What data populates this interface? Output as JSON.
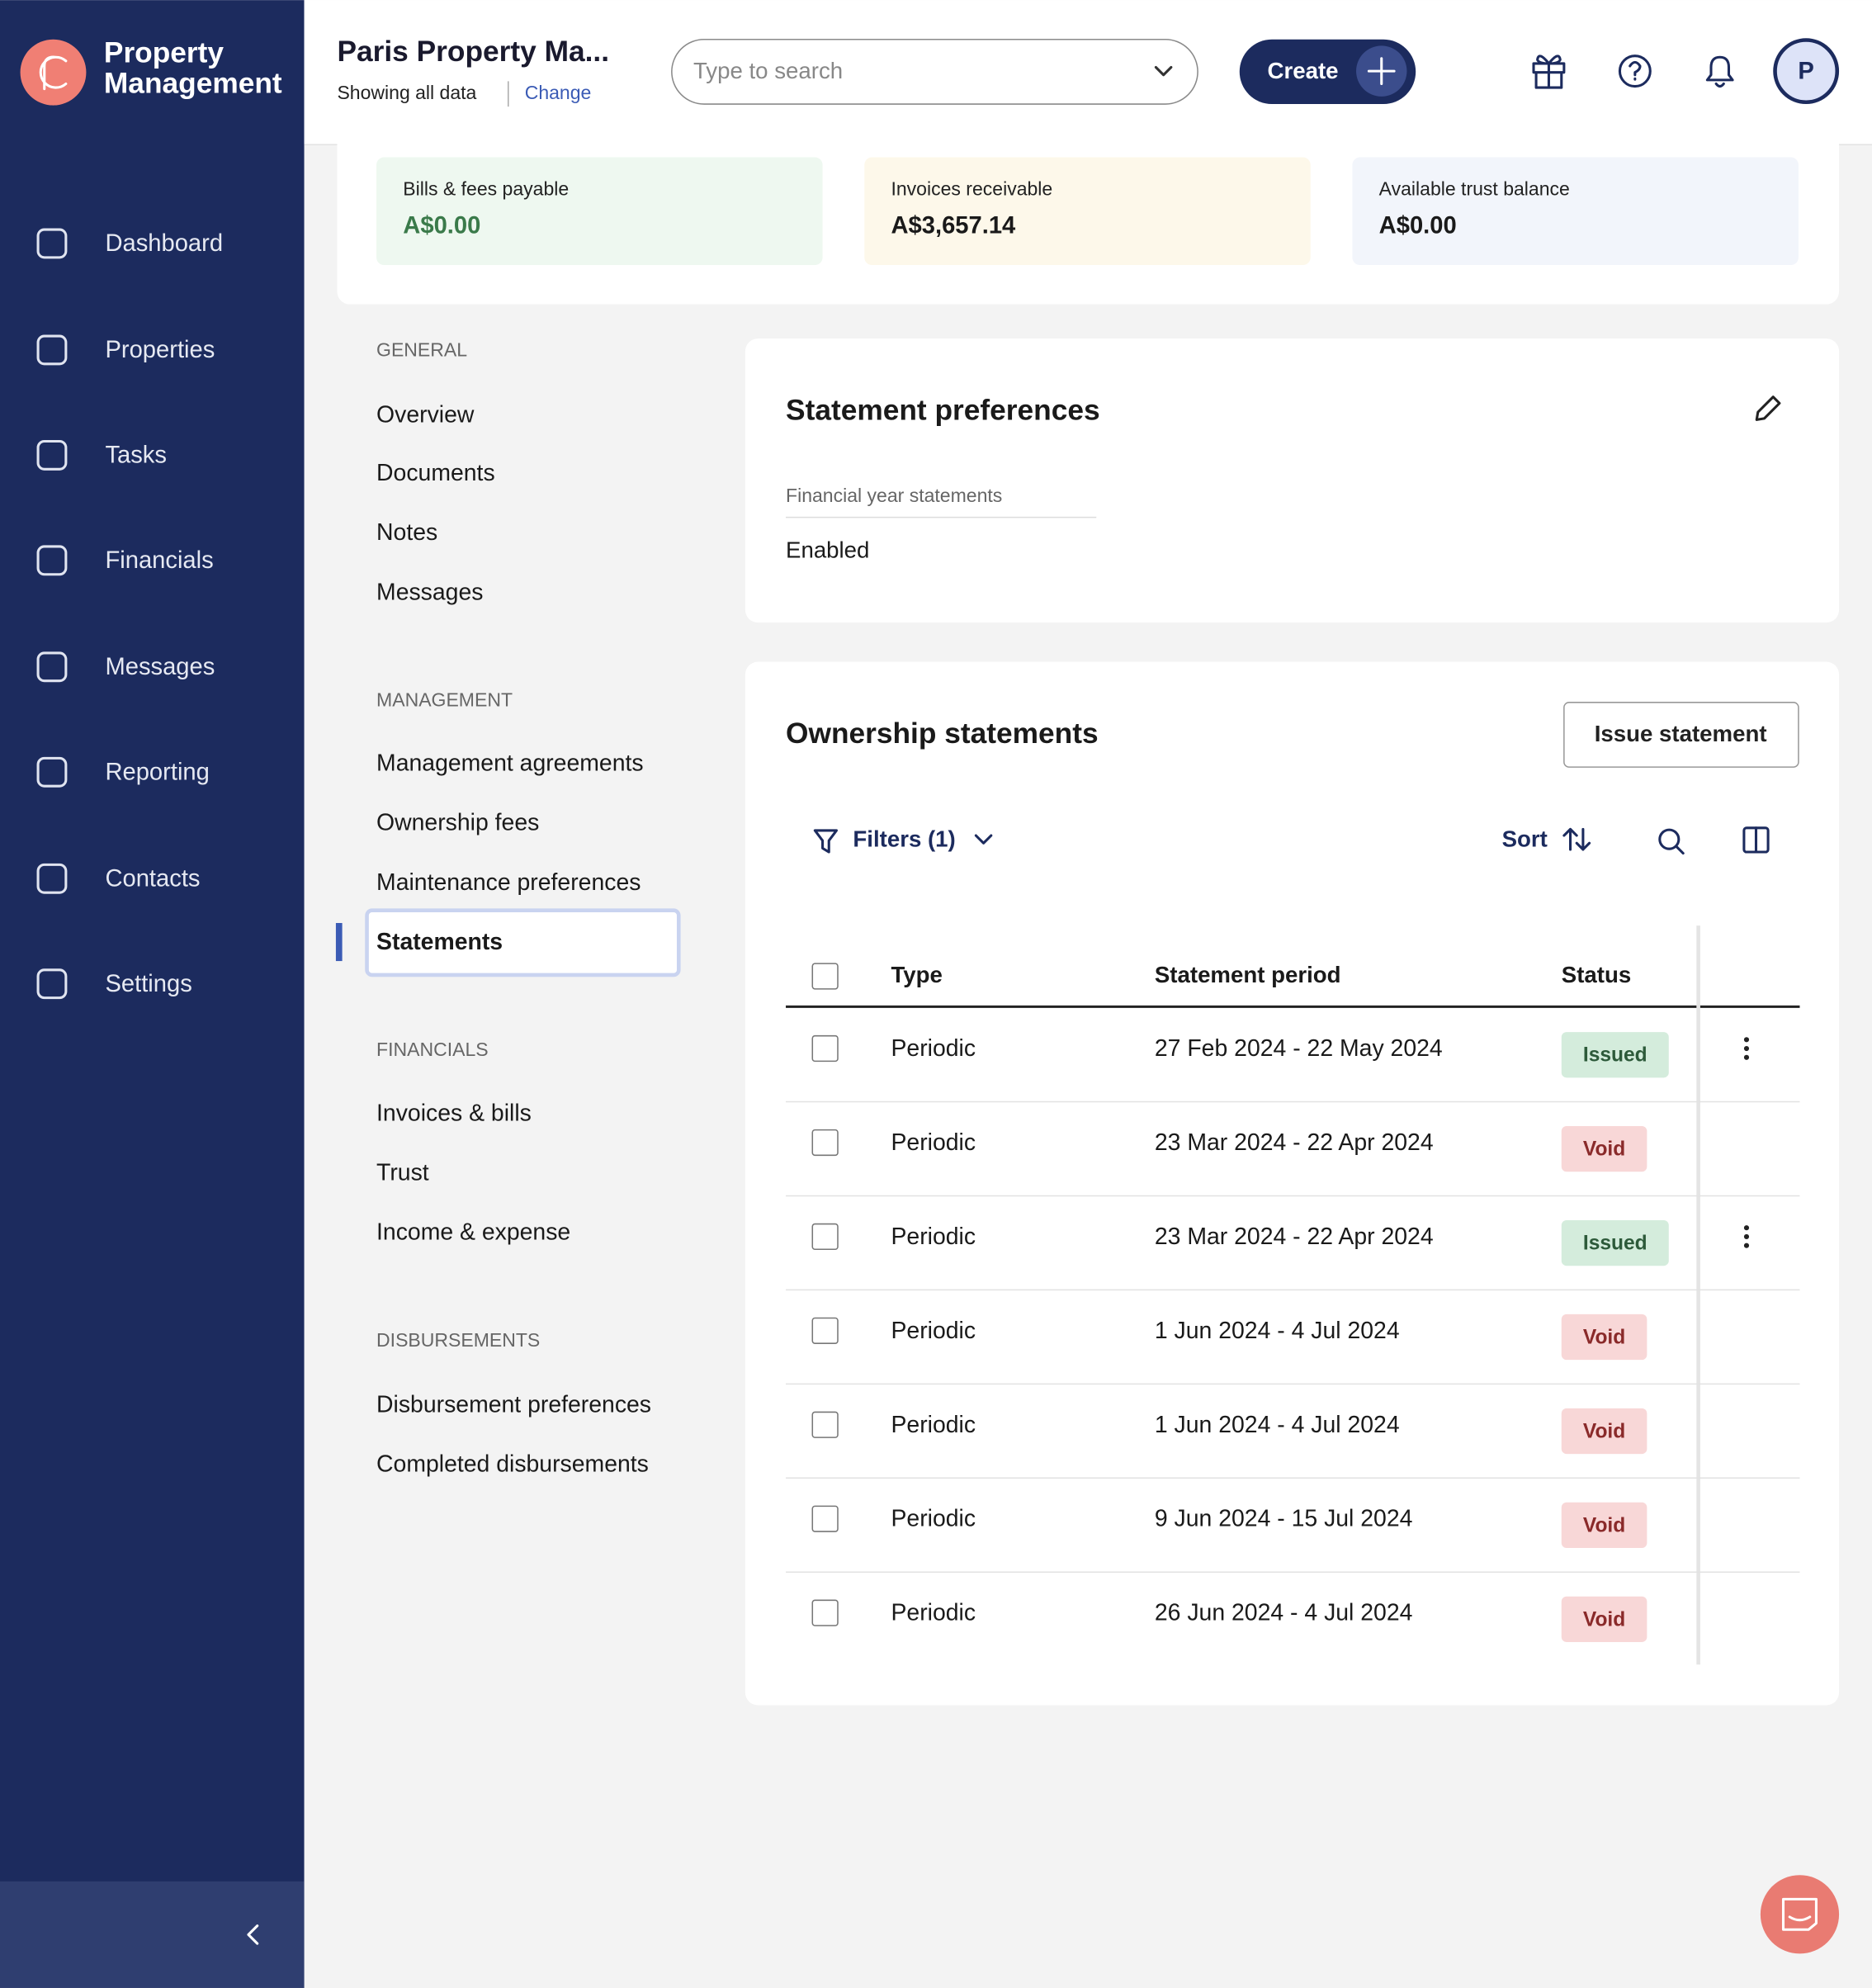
{
  "brand": {
    "line1": "Property",
    "line2": "Management"
  },
  "sidebar": {
    "nav": [
      "Dashboard",
      "Properties",
      "Tasks",
      "Financials",
      "Messages",
      "Reporting",
      "Contacts",
      "Settings"
    ]
  },
  "header": {
    "title": "Paris Property Ma...",
    "subtitle": "Showing all data",
    "change": "Change",
    "search_placeholder": "Type to search",
    "create": "Create",
    "avatar": "P"
  },
  "summary": [
    {
      "label": "Bills & fees payable",
      "amount": "A$0.00",
      "bg": "#eef8f0",
      "color": "#3a7a4a"
    },
    {
      "label": "Invoices receivable",
      "amount": "A$3,657.14",
      "bg": "#fdf8ea",
      "color": "#1a1a1a"
    },
    {
      "label": "Available trust balance",
      "amount": "A$0.00",
      "bg": "#f2f5fb",
      "color": "#1a1a1a"
    }
  ],
  "subnav": [
    {
      "heading": "GENERAL",
      "items": [
        "Overview",
        "Documents",
        "Notes",
        "Messages"
      ]
    },
    {
      "heading": "MANAGEMENT",
      "items": [
        "Management agreements",
        "Ownership fees",
        "Maintenance preferences",
        "Statements"
      ]
    },
    {
      "heading": "FINANCIALS",
      "items": [
        "Invoices & bills",
        "Trust",
        "Income & expense"
      ]
    },
    {
      "heading": "DISBURSEMENTS",
      "items": [
        "Disbursement preferences",
        "Completed disbursements"
      ]
    }
  ],
  "preferences": {
    "title": "Statement preferences",
    "field_label": "Financial year statements",
    "field_value": "Enabled"
  },
  "statements": {
    "title": "Ownership statements",
    "issue_button": "Issue statement",
    "filters": "Filters (1)",
    "sort": "Sort",
    "columns": [
      "Type",
      "Statement period",
      "Status"
    ],
    "rows": [
      {
        "type": "Periodic",
        "period": "27 Feb 2024 - 22 May 2024",
        "status": "Issued",
        "bg": "#d4ecdc",
        "color": "#2d5a3a"
      },
      {
        "type": "Periodic",
        "period": "23 Mar 2024 - 22 Apr 2024",
        "status": "Void",
        "bg": "#f8d7d7",
        "color": "#8a2a2a"
      },
      {
        "type": "Periodic",
        "period": "23 Mar 2024 - 22 Apr 2024",
        "status": "Issued",
        "bg": "#d4ecdc",
        "color": "#2d5a3a"
      },
      {
        "type": "Periodic",
        "period": "1 Jun 2024 - 4 Jul 2024",
        "status": "Void",
        "bg": "#f8d7d7",
        "color": "#8a2a2a"
      },
      {
        "type": "Periodic",
        "period": "1 Jun 2024 - 4 Jul 2024",
        "status": "Void",
        "bg": "#f8d7d7",
        "color": "#8a2a2a"
      },
      {
        "type": "Periodic",
        "period": "9 Jun 2024 - 15 Jul 2024",
        "status": "Void",
        "bg": "#f8d7d7",
        "color": "#8a2a2a"
      },
      {
        "type": "Periodic",
        "period": "26 Jun 2024 - 4 Jul 2024",
        "status": "Void",
        "bg": "#f8d7d7",
        "color": "#8a2a2a"
      }
    ]
  }
}
